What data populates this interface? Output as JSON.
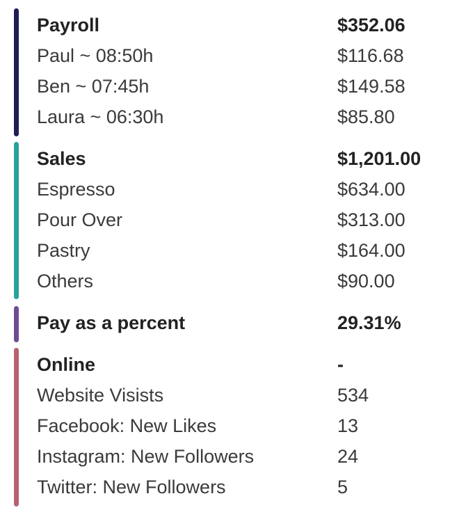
{
  "colors": {
    "payroll_bar": "#1f1d55",
    "sales_bar": "#27a39a",
    "percent_bar": "#6e4c93",
    "online_bar": "#b5636e"
  },
  "payroll": {
    "title": "Payroll",
    "total": "$352.06",
    "rows": [
      {
        "label": "Paul ~ 08:50h",
        "value": "$116.68"
      },
      {
        "label": "Ben ~ 07:45h",
        "value": "$149.58"
      },
      {
        "label": "Laura ~ 06:30h",
        "value": "$85.80"
      }
    ]
  },
  "sales": {
    "title": "Sales",
    "total": "$1,201.00",
    "rows": [
      {
        "label": "Espresso",
        "value": "$634.00"
      },
      {
        "label": "Pour Over",
        "value": "$313.00"
      },
      {
        "label": "Pastry",
        "value": "$164.00"
      },
      {
        "label": "Others",
        "value": "$90.00"
      }
    ]
  },
  "percent": {
    "title": "Pay as a percent",
    "value": "29.31%"
  },
  "online": {
    "title": "Online",
    "total": "-",
    "rows": [
      {
        "label": "Website Visists",
        "value": "534"
      },
      {
        "label": "Facebook: New Likes",
        "value": "13"
      },
      {
        "label": "Instagram: New Followers",
        "value": "24"
      },
      {
        "label": "Twitter: New Followers",
        "value": "5"
      }
    ]
  }
}
